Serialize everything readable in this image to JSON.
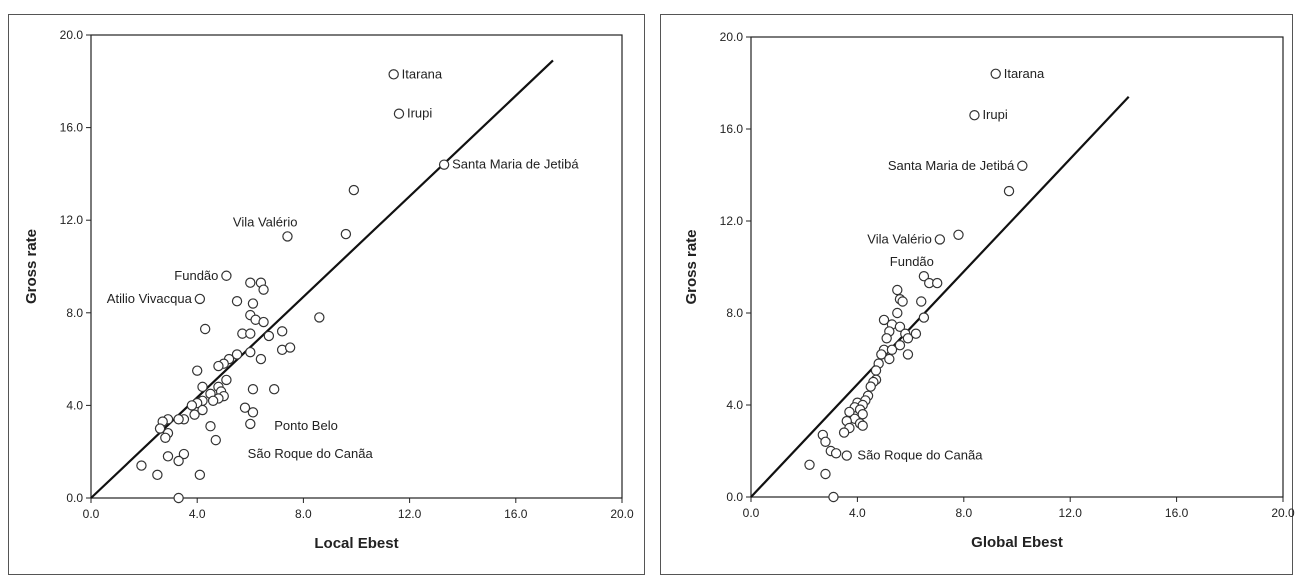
{
  "chart_data": [
    {
      "type": "scatter",
      "xlabel": "Local Ebest",
      "ylabel": "Gross rate",
      "xlim": [
        0,
        20
      ],
      "ylim": [
        0,
        20
      ],
      "xticks": [
        "0.0",
        "4.0",
        "8.0",
        "12.0",
        "16.0",
        "20.0"
      ],
      "yticks": [
        "0.0",
        "4.0",
        "8.0",
        "12.0",
        "16.0",
        "20.0"
      ],
      "grid": false,
      "fit_line": {
        "x": [
          0,
          17.4
        ],
        "y": [
          0,
          18.9
        ]
      },
      "annotations": [
        {
          "text": "Itarana",
          "x": 11.4,
          "y": 18.3,
          "side": "right"
        },
        {
          "text": "Irupi",
          "x": 11.6,
          "y": 16.6,
          "side": "right"
        },
        {
          "text": "Santa Maria de Jetibá",
          "x": 13.3,
          "y": 14.4,
          "side": "right"
        },
        {
          "text": "Vila Valério",
          "x": 7.4,
          "y": 11.3,
          "side": "above"
        },
        {
          "text": "Fundão",
          "x": 5.1,
          "y": 9.6,
          "side": "left"
        },
        {
          "text": "Atilio Vivacqua",
          "x": 4.1,
          "y": 8.6,
          "side": "left"
        },
        {
          "text": "Ponto Belo",
          "x": 6.6,
          "y": 3.1,
          "side": "right"
        },
        {
          "text": "São Roque do Canãa",
          "x": 5.6,
          "y": 1.9,
          "side": "right"
        }
      ],
      "points": [
        [
          11.4,
          18.3
        ],
        [
          11.6,
          16.6
        ],
        [
          13.3,
          14.4
        ],
        [
          9.9,
          13.3
        ],
        [
          9.6,
          11.4
        ],
        [
          7.4,
          11.3
        ],
        [
          5.1,
          9.6
        ],
        [
          6.0,
          9.3
        ],
        [
          6.4,
          9.3
        ],
        [
          6.5,
          9.0
        ],
        [
          4.1,
          8.6
        ],
        [
          5.5,
          8.5
        ],
        [
          6.1,
          8.4
        ],
        [
          8.6,
          7.8
        ],
        [
          6.0,
          7.9
        ],
        [
          6.2,
          7.7
        ],
        [
          6.5,
          7.6
        ],
        [
          4.3,
          7.3
        ],
        [
          5.7,
          7.1
        ],
        [
          6.0,
          7.1
        ],
        [
          7.2,
          7.2
        ],
        [
          6.7,
          7.0
        ],
        [
          7.2,
          6.4
        ],
        [
          7.5,
          6.5
        ],
        [
          6.0,
          6.3
        ],
        [
          6.4,
          6.0
        ],
        [
          5.5,
          6.2
        ],
        [
          5.2,
          6.0
        ],
        [
          5.0,
          5.8
        ],
        [
          4.8,
          5.7
        ],
        [
          4.0,
          5.5
        ],
        [
          5.1,
          5.1
        ],
        [
          4.8,
          4.8
        ],
        [
          4.9,
          4.6
        ],
        [
          6.1,
          4.7
        ],
        [
          6.9,
          4.7
        ],
        [
          4.2,
          4.8
        ],
        [
          4.5,
          4.5
        ],
        [
          5.0,
          4.4
        ],
        [
          4.8,
          4.3
        ],
        [
          4.6,
          4.2
        ],
        [
          4.2,
          4.2
        ],
        [
          4.0,
          4.1
        ],
        [
          3.8,
          4.0
        ],
        [
          5.8,
          3.9
        ],
        [
          6.1,
          3.7
        ],
        [
          3.9,
          3.6
        ],
        [
          4.2,
          3.8
        ],
        [
          3.5,
          3.4
        ],
        [
          3.3,
          3.4
        ],
        [
          2.9,
          3.4
        ],
        [
          2.7,
          3.3
        ],
        [
          2.6,
          3.0
        ],
        [
          2.9,
          2.8
        ],
        [
          2.8,
          2.6
        ],
        [
          6.0,
          3.2
        ],
        [
          4.5,
          3.1
        ],
        [
          4.7,
          2.5
        ],
        [
          3.5,
          1.9
        ],
        [
          2.9,
          1.8
        ],
        [
          3.3,
          1.6
        ],
        [
          1.9,
          1.4
        ],
        [
          2.5,
          1.0
        ],
        [
          4.1,
          1.0
        ],
        [
          3.3,
          0.0
        ]
      ]
    },
    {
      "type": "scatter",
      "xlabel": "Global Ebest",
      "ylabel": "Gross rate",
      "xlim": [
        0,
        20
      ],
      "ylim": [
        0,
        20
      ],
      "xticks": [
        "0.0",
        "4.0",
        "8.0",
        "12.0",
        "16.0",
        "20.0"
      ],
      "yticks": [
        "0.0",
        "4.0",
        "8.0",
        "12.0",
        "16.0",
        "20.0"
      ],
      "grid": false,
      "fit_line": {
        "x": [
          0,
          14.2
        ],
        "y": [
          0,
          17.4
        ]
      },
      "annotations": [
        {
          "text": "Itarana",
          "x": 9.2,
          "y": 18.4,
          "side": "right"
        },
        {
          "text": "Irupi",
          "x": 8.4,
          "y": 16.6,
          "side": "right"
        },
        {
          "text": "Santa Maria de Jetibá",
          "x": 10.2,
          "y": 14.4,
          "side": "left"
        },
        {
          "text": "Vila Valério",
          "x": 7.1,
          "y": 11.2,
          "side": "left"
        },
        {
          "text": "Fundão",
          "x": 6.5,
          "y": 9.6,
          "side": "above"
        },
        {
          "text": "São Roque do Canãa",
          "x": 3.7,
          "y": 1.8,
          "side": "right"
        }
      ],
      "points": [
        [
          9.2,
          18.4
        ],
        [
          8.4,
          16.6
        ],
        [
          10.2,
          14.4
        ],
        [
          9.7,
          13.3
        ],
        [
          7.8,
          11.4
        ],
        [
          7.1,
          11.2
        ],
        [
          6.5,
          9.6
        ],
        [
          6.7,
          9.3
        ],
        [
          7.0,
          9.3
        ],
        [
          5.5,
          9.0
        ],
        [
          5.6,
          8.6
        ],
        [
          5.7,
          8.5
        ],
        [
          6.4,
          8.5
        ],
        [
          5.5,
          8.0
        ],
        [
          6.5,
          7.8
        ],
        [
          5.0,
          7.7
        ],
        [
          5.3,
          7.5
        ],
        [
          5.6,
          7.4
        ],
        [
          5.2,
          7.2
        ],
        [
          5.8,
          7.1
        ],
        [
          6.2,
          7.1
        ],
        [
          5.9,
          6.9
        ],
        [
          5.1,
          6.9
        ],
        [
          5.6,
          6.6
        ],
        [
          5.0,
          6.4
        ],
        [
          5.3,
          6.4
        ],
        [
          5.9,
          6.2
        ],
        [
          4.9,
          6.2
        ],
        [
          5.2,
          6.0
        ],
        [
          4.8,
          5.8
        ],
        [
          4.7,
          5.5
        ],
        [
          4.7,
          5.1
        ],
        [
          4.6,
          5.0
        ],
        [
          4.5,
          4.8
        ],
        [
          4.4,
          4.4
        ],
        [
          4.3,
          4.2
        ],
        [
          4.0,
          4.1
        ],
        [
          4.2,
          4.0
        ],
        [
          3.9,
          3.9
        ],
        [
          4.1,
          3.8
        ],
        [
          3.7,
          3.7
        ],
        [
          4.2,
          3.6
        ],
        [
          3.9,
          3.4
        ],
        [
          3.6,
          3.3
        ],
        [
          4.1,
          3.2
        ],
        [
          4.2,
          3.1
        ],
        [
          3.7,
          3.0
        ],
        [
          3.5,
          2.8
        ],
        [
          2.7,
          2.7
        ],
        [
          2.8,
          2.4
        ],
        [
          3.0,
          2.0
        ],
        [
          3.2,
          1.9
        ],
        [
          3.6,
          1.8
        ],
        [
          2.2,
          1.4
        ],
        [
          2.8,
          1.0
        ],
        [
          3.1,
          0.0
        ]
      ]
    }
  ]
}
